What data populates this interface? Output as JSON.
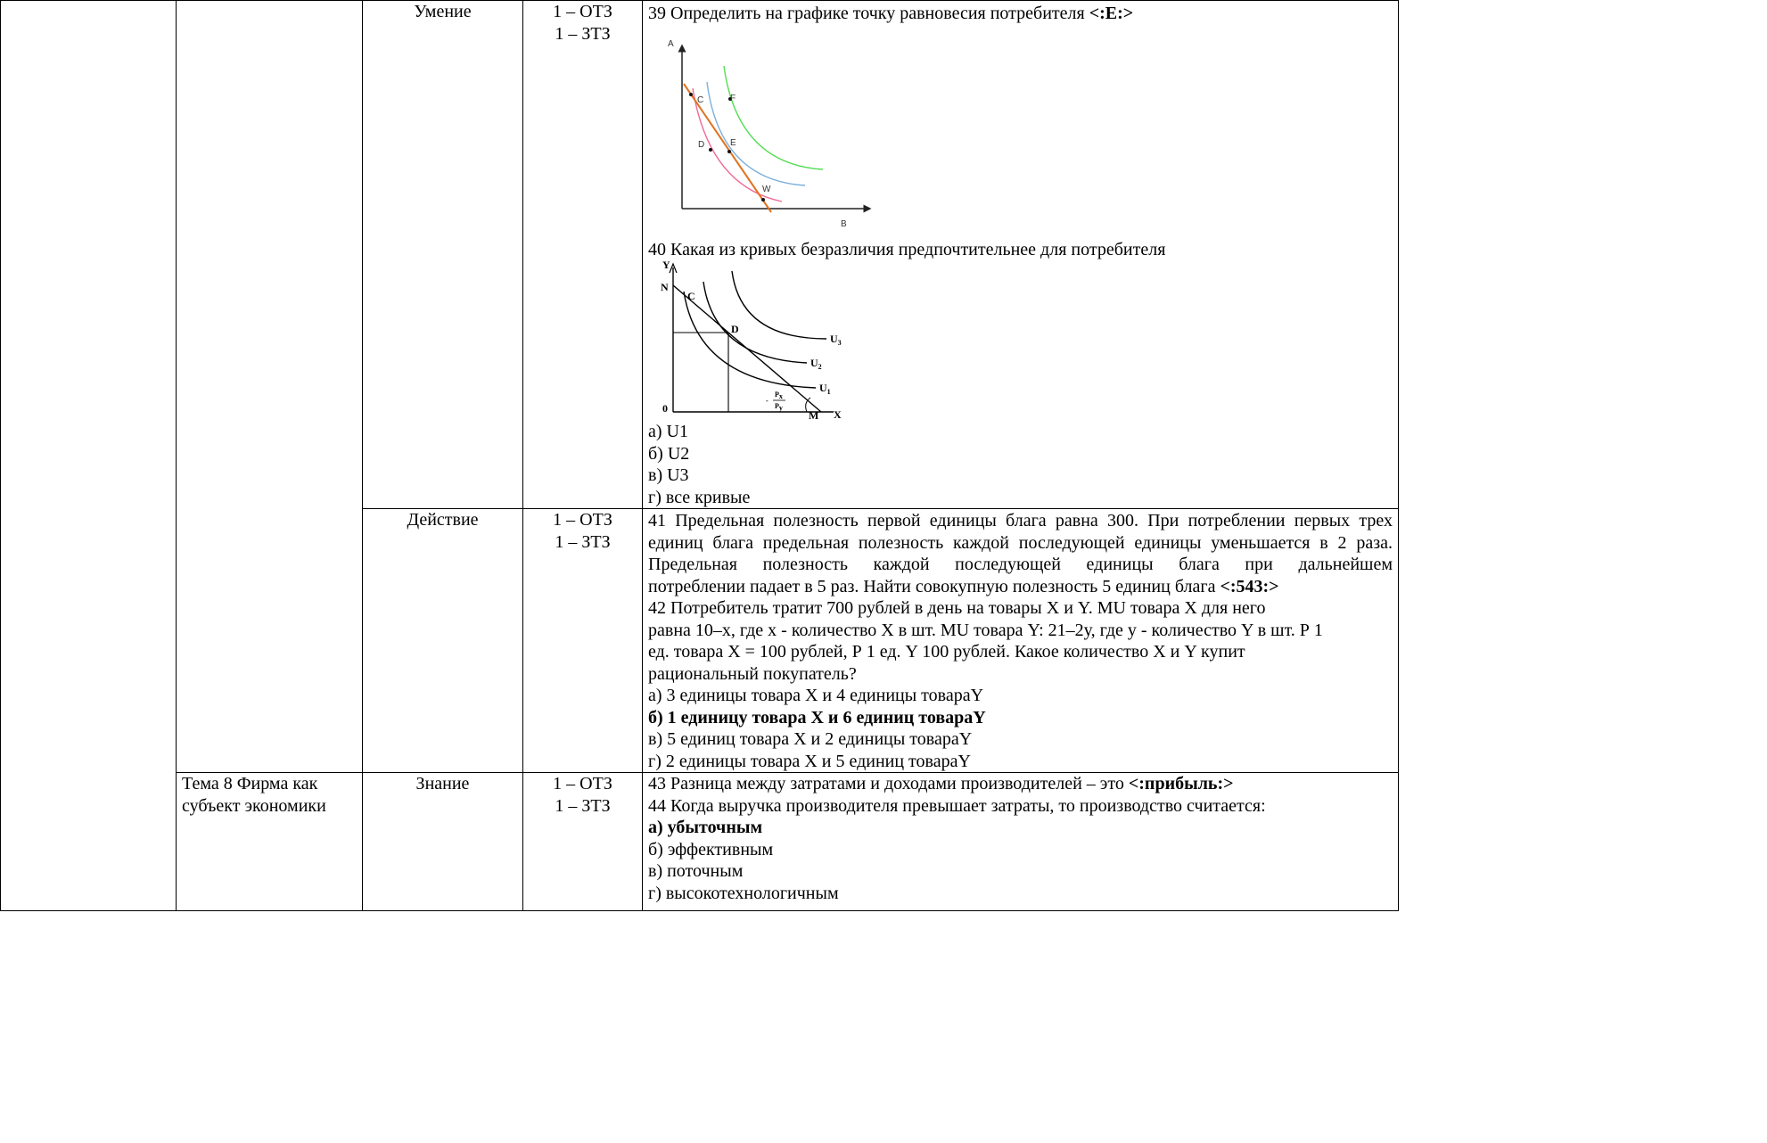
{
  "rows": {
    "umenie": {
      "level": "Умение",
      "type_line1": "1 – ОТЗ",
      "type_line2": "1 – ЗТЗ",
      "q39": {
        "text": "39 Определить на графике точку равновесия потребителя ",
        "answer": "<:E:>",
        "figure": {
          "axis_y": "A",
          "axis_x": "B",
          "points": [
            "C",
            "F",
            "D",
            "E",
            "W"
          ],
          "colors": {
            "curve_low": "#f06a96",
            "curve_mid": "#7fb0dc",
            "curve_high": "#55dd55",
            "budget": "#e0731f"
          }
        }
      },
      "q40": {
        "text": "40 Какая из кривых безразличия предпочтительнее для потребителя",
        "figure": {
          "axis_y": "Y",
          "axis_x": "X",
          "origin": "0",
          "intercept_y": "N",
          "intercept_x": "M",
          "points": [
            "C",
            "D"
          ],
          "curves": [
            "U",
            "U",
            "U"
          ],
          "curve_subs": [
            "3",
            "2",
            "1"
          ],
          "slope_num": "P",
          "slope_num_sub": "x",
          "slope_den": "P",
          "slope_den_sub": "y"
        },
        "options": [
          "а) U1",
          "б) U2",
          "в) U3",
          "г) все кривые"
        ]
      }
    },
    "deistvie": {
      "level": "Действие",
      "type_line1": "1 – ОТЗ",
      "type_line2": "1 – ЗТЗ",
      "q41": {
        "line1": "41 Предельная полезность первой единицы блага равна 300. При потреблении первых трех",
        "line2": "единиц блага предельная полезность каждой последующей единицы уменьшается в 2 раза.",
        "line3": "Предельная полезность каждой последующей единицы блага при дальнейшем",
        "line4": "потреблении падает в 5 раз. Найти совокупную полезность 5 единиц блага ",
        "answer": "<:543:>"
      },
      "q42": {
        "line1": "42 Потребитель тратит 700 рублей в день на товары X и Y. MU товара X для него",
        "line2": "равна 10–х, где х - количество X в шт. MU товара Y: 21–2у, где у - количество Y в шт. Р 1",
        "line3": "ед. товара X = 100 рублей, Р 1 ед. Y 100 рублей. Какое количество X и Y купит",
        "line4": "рациональный покупатель?",
        "options": [
          "а) 3 единицы товара X и 4 единицы товараY",
          "б) 1 единицу товара X и 6 единиц товараY",
          "в) 5 единиц товара X и 2 единицы товараY",
          "г) 2 единицы товара X и 5 единиц товараY"
        ]
      }
    },
    "znanie": {
      "topic_line1": "Тема 8 Фирма как",
      "topic_line2": "субъект экономики",
      "level": "Знание",
      "type_line1": "1 – ОТЗ",
      "type_line2": "1 – ЗТЗ",
      "q43": {
        "text": "43 Разница между затратами и доходами производителей – это ",
        "answer": "<:прибыль:>"
      },
      "q44": {
        "text": "44 Когда выручка производителя превышает затраты, то производство считается:",
        "options": [
          "а) убыточным",
          "б) эффективным",
          "в) поточным",
          "г) высокотехнологичным"
        ]
      }
    }
  }
}
